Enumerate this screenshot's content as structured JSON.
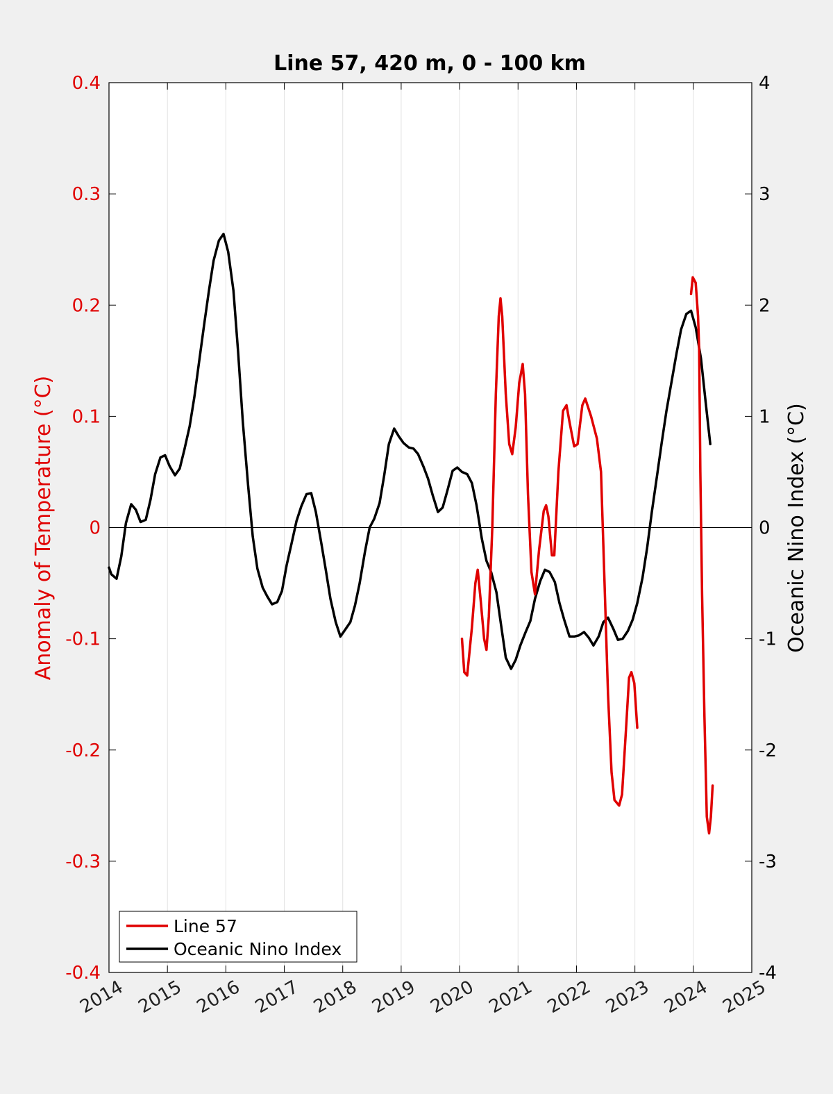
{
  "chart_data": {
    "type": "line",
    "title": "Line 57, 420 m, 0 - 100 km",
    "ylabel_left": "Anomaly of Temperature (°C)",
    "ylabel_right": "Oceanic Nino Index (°C)",
    "xlim": [
      2014,
      2025
    ],
    "ylim_left": [
      -0.4,
      0.4
    ],
    "ylim_right": [
      -4,
      4
    ],
    "x_ticks": [
      "2014",
      "2015",
      "2016",
      "2017",
      "2018",
      "2019",
      "2020",
      "2021",
      "2022",
      "2023",
      "2024",
      "2025"
    ],
    "y_left_ticks": [
      "0.4",
      "0.3",
      "0.2",
      "0.1",
      "0",
      "-0.1",
      "-0.2",
      "-0.3",
      "-0.4"
    ],
    "y_right_ticks": [
      "4",
      "3",
      "2",
      "1",
      "0",
      "-1",
      "-2",
      "-3",
      "-4"
    ],
    "grid": "vertical",
    "legend_position": "bottom-left",
    "colors": {
      "line57": "#e00000",
      "oni": "#000000",
      "left_axis": "#e00000"
    },
    "series": [
      {
        "name": "Line 57",
        "axis": "left",
        "segments": [
          [
            [
              2020.04,
              -0.1
            ],
            [
              2020.08,
              -0.13
            ],
            [
              2020.13,
              -0.133
            ],
            [
              2020.21,
              -0.09
            ],
            [
              2020.27,
              -0.05
            ],
            [
              2020.31,
              -0.038
            ],
            [
              2020.36,
              -0.065
            ],
            [
              2020.42,
              -0.1
            ],
            [
              2020.46,
              -0.11
            ],
            [
              2020.5,
              -0.08
            ],
            [
              2020.56,
              0.0
            ],
            [
              2020.62,
              0.12
            ],
            [
              2020.67,
              0.19
            ],
            [
              2020.7,
              0.206
            ],
            [
              2020.73,
              0.19
            ],
            [
              2020.79,
              0.12
            ],
            [
              2020.85,
              0.075
            ],
            [
              2020.9,
              0.066
            ],
            [
              2020.96,
              0.09
            ],
            [
              2021.02,
              0.13
            ],
            [
              2021.08,
              0.147
            ],
            [
              2021.12,
              0.12
            ],
            [
              2021.17,
              0.03
            ],
            [
              2021.23,
              -0.04
            ],
            [
              2021.29,
              -0.06
            ],
            [
              2021.36,
              -0.02
            ],
            [
              2021.44,
              0.015
            ],
            [
              2021.48,
              0.02
            ],
            [
              2021.52,
              0.01
            ],
            [
              2021.58,
              -0.025
            ],
            [
              2021.62,
              -0.025
            ],
            [
              2021.69,
              0.05
            ],
            [
              2021.77,
              0.105
            ],
            [
              2021.83,
              0.11
            ],
            [
              2021.88,
              0.095
            ],
            [
              2021.96,
              0.073
            ],
            [
              2022.02,
              0.075
            ],
            [
              2022.1,
              0.11
            ],
            [
              2022.15,
              0.116
            ],
            [
              2022.25,
              0.1
            ],
            [
              2022.35,
              0.08
            ],
            [
              2022.42,
              0.05
            ],
            [
              2022.48,
              -0.05
            ],
            [
              2022.54,
              -0.15
            ],
            [
              2022.6,
              -0.22
            ],
            [
              2022.65,
              -0.245
            ],
            [
              2022.73,
              -0.25
            ],
            [
              2022.78,
              -0.24
            ],
            [
              2022.86,
              -0.17
            ],
            [
              2022.9,
              -0.135
            ],
            [
              2022.94,
              -0.13
            ],
            [
              2022.99,
              -0.14
            ],
            [
              2023.04,
              -0.18
            ]
          ],
          [
            [
              2023.96,
              0.21
            ],
            [
              2023.99,
              0.225
            ],
            [
              2024.04,
              0.22
            ],
            [
              2024.08,
              0.19
            ],
            [
              2024.1,
              0.16
            ],
            [
              2024.12,
              0.05
            ],
            [
              2024.15,
              -0.06
            ],
            [
              2024.19,
              -0.17
            ],
            [
              2024.23,
              -0.26
            ],
            [
              2024.27,
              -0.275
            ],
            [
              2024.3,
              -0.26
            ],
            [
              2024.33,
              -0.232
            ]
          ]
        ]
      },
      {
        "name": "Oceanic Nino Index",
        "axis": "right",
        "points": [
          [
            2014.0,
            -0.36
          ],
          [
            2014.04,
            -0.42
          ],
          [
            2014.13,
            -0.46
          ],
          [
            2014.21,
            -0.26
          ],
          [
            2014.29,
            0.04
          ],
          [
            2014.38,
            0.21
          ],
          [
            2014.46,
            0.16
          ],
          [
            2014.54,
            0.05
          ],
          [
            2014.63,
            0.07
          ],
          [
            2014.71,
            0.25
          ],
          [
            2014.79,
            0.48
          ],
          [
            2014.88,
            0.63
          ],
          [
            2014.96,
            0.65
          ],
          [
            2015.04,
            0.55
          ],
          [
            2015.13,
            0.47
          ],
          [
            2015.21,
            0.53
          ],
          [
            2015.29,
            0.7
          ],
          [
            2015.38,
            0.91
          ],
          [
            2015.46,
            1.17
          ],
          [
            2015.54,
            1.48
          ],
          [
            2015.63,
            1.83
          ],
          [
            2015.71,
            2.13
          ],
          [
            2015.79,
            2.4
          ],
          [
            2015.88,
            2.58
          ],
          [
            2015.96,
            2.64
          ],
          [
            2016.04,
            2.48
          ],
          [
            2016.13,
            2.13
          ],
          [
            2016.21,
            1.58
          ],
          [
            2016.29,
            0.95
          ],
          [
            2016.38,
            0.38
          ],
          [
            2016.46,
            -0.08
          ],
          [
            2016.54,
            -0.37
          ],
          [
            2016.63,
            -0.54
          ],
          [
            2016.71,
            -0.62
          ],
          [
            2016.79,
            -0.69
          ],
          [
            2016.88,
            -0.67
          ],
          [
            2016.96,
            -0.57
          ],
          [
            2017.04,
            -0.34
          ],
          [
            2017.13,
            -0.13
          ],
          [
            2017.21,
            0.06
          ],
          [
            2017.29,
            0.19
          ],
          [
            2017.38,
            0.3
          ],
          [
            2017.46,
            0.31
          ],
          [
            2017.54,
            0.14
          ],
          [
            2017.63,
            -0.13
          ],
          [
            2017.71,
            -0.38
          ],
          [
            2017.79,
            -0.64
          ],
          [
            2017.88,
            -0.85
          ],
          [
            2017.96,
            -0.98
          ],
          [
            2018.04,
            -0.92
          ],
          [
            2018.13,
            -0.85
          ],
          [
            2018.21,
            -0.7
          ],
          [
            2018.29,
            -0.5
          ],
          [
            2018.38,
            -0.22
          ],
          [
            2018.46,
            0.0
          ],
          [
            2018.54,
            0.08
          ],
          [
            2018.63,
            0.22
          ],
          [
            2018.71,
            0.47
          ],
          [
            2018.79,
            0.75
          ],
          [
            2018.88,
            0.89
          ],
          [
            2018.96,
            0.82
          ],
          [
            2019.04,
            0.76
          ],
          [
            2019.13,
            0.72
          ],
          [
            2019.21,
            0.71
          ],
          [
            2019.29,
            0.66
          ],
          [
            2019.38,
            0.55
          ],
          [
            2019.46,
            0.44
          ],
          [
            2019.54,
            0.29
          ],
          [
            2019.63,
            0.14
          ],
          [
            2019.71,
            0.18
          ],
          [
            2019.79,
            0.33
          ],
          [
            2019.88,
            0.51
          ],
          [
            2019.96,
            0.54
          ],
          [
            2020.04,
            0.5
          ],
          [
            2020.13,
            0.48
          ],
          [
            2020.21,
            0.4
          ],
          [
            2020.29,
            0.2
          ],
          [
            2020.38,
            -0.1
          ],
          [
            2020.46,
            -0.3
          ],
          [
            2020.54,
            -0.4
          ],
          [
            2020.63,
            -0.58
          ],
          [
            2020.71,
            -0.88
          ],
          [
            2020.79,
            -1.17
          ],
          [
            2020.88,
            -1.27
          ],
          [
            2020.96,
            -1.19
          ],
          [
            2021.04,
            -1.06
          ],
          [
            2021.13,
            -0.94
          ],
          [
            2021.21,
            -0.84
          ],
          [
            2021.29,
            -0.64
          ],
          [
            2021.38,
            -0.48
          ],
          [
            2021.46,
            -0.38
          ],
          [
            2021.54,
            -0.4
          ],
          [
            2021.63,
            -0.49
          ],
          [
            2021.71,
            -0.68
          ],
          [
            2021.79,
            -0.83
          ],
          [
            2021.88,
            -0.98
          ],
          [
            2021.96,
            -0.98
          ],
          [
            2022.04,
            -0.97
          ],
          [
            2022.13,
            -0.94
          ],
          [
            2022.21,
            -0.99
          ],
          [
            2022.29,
            -1.06
          ],
          [
            2022.38,
            -0.98
          ],
          [
            2022.46,
            -0.85
          ],
          [
            2022.54,
            -0.81
          ],
          [
            2022.63,
            -0.91
          ],
          [
            2022.71,
            -1.01
          ],
          [
            2022.79,
            -1.0
          ],
          [
            2022.88,
            -0.93
          ],
          [
            2022.96,
            -0.83
          ],
          [
            2023.04,
            -0.68
          ],
          [
            2023.13,
            -0.45
          ],
          [
            2023.21,
            -0.18
          ],
          [
            2023.29,
            0.14
          ],
          [
            2023.38,
            0.47
          ],
          [
            2023.46,
            0.77
          ],
          [
            2023.54,
            1.05
          ],
          [
            2023.63,
            1.32
          ],
          [
            2023.71,
            1.56
          ],
          [
            2023.79,
            1.78
          ],
          [
            2023.88,
            1.92
          ],
          [
            2023.96,
            1.95
          ],
          [
            2024.04,
            1.8
          ],
          [
            2024.13,
            1.52
          ],
          [
            2024.21,
            1.13
          ],
          [
            2024.29,
            0.75
          ]
        ]
      }
    ]
  }
}
